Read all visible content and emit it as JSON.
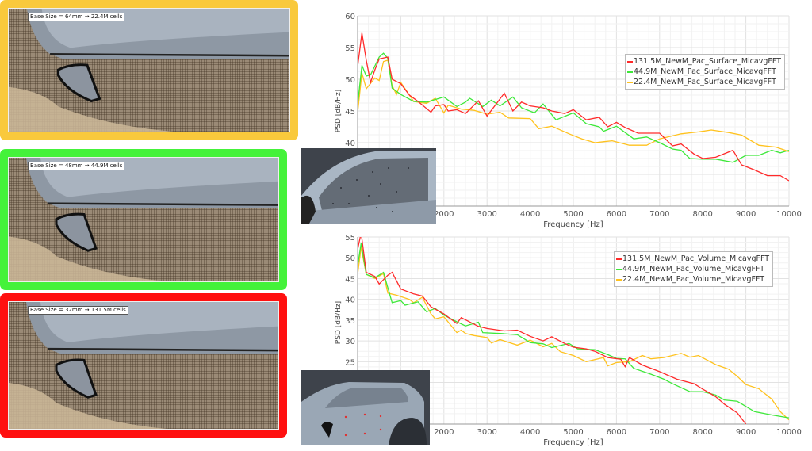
{
  "panels": [
    {
      "caption": "Base Size = 64mm → 22.4M cells",
      "border_color": "#f9c93c"
    },
    {
      "caption": "Base Size = 48mm → 44.9M cells",
      "border_color": "#44f23a"
    },
    {
      "caption": "Base Size = 32mm → 131.5M cells",
      "border_color": "#ff1010"
    }
  ],
  "chart_data": [
    {
      "type": "line",
      "xlabel": "Frequency [Hz]",
      "ylabel": "PSD [dB/Hz]",
      "xlim": [
        0,
        10000
      ],
      "ylim": [
        30,
        60
      ],
      "xticks": [
        "2000",
        "3000",
        "4000",
        "5000",
        "6000",
        "7000",
        "8000",
        "9000",
        "10000"
      ],
      "yticks": [
        "40",
        "45",
        "50",
        "55",
        "60"
      ],
      "grid": true,
      "legend_position": "top-right",
      "series": [
        {
          "name": "131.5M_NewM_Pac_Surface_MicavgFFT",
          "color": "#ff2a2a",
          "points": [
            [
              0,
              52
            ],
            [
              100,
              57.3
            ],
            [
              200,
              53
            ],
            [
              300,
              49.5
            ],
            [
              400,
              51.5
            ],
            [
              500,
              53.2
            ],
            [
              700,
              53.5
            ],
            [
              800,
              50
            ],
            [
              1000,
              49.3
            ],
            [
              1200,
              47.5
            ],
            [
              1400,
              46.5
            ],
            [
              1700,
              44.8
            ],
            [
              1800,
              45.8
            ],
            [
              2000,
              46
            ],
            [
              2100,
              45
            ],
            [
              2300,
              45.2
            ],
            [
              2500,
              44.6
            ],
            [
              2800,
              46.6
            ],
            [
              3000,
              44.2
            ],
            [
              3200,
              46
            ],
            [
              3400,
              47.8
            ],
            [
              3600,
              45
            ],
            [
              3800,
              46.4
            ],
            [
              4000,
              45.8
            ],
            [
              4300,
              45.5
            ],
            [
              4500,
              45
            ],
            [
              4800,
              44.6
            ],
            [
              5000,
              45.2
            ],
            [
              5300,
              43.6
            ],
            [
              5600,
              44
            ],
            [
              5800,
              42.5
            ],
            [
              6000,
              43.2
            ],
            [
              6200,
              42.4
            ],
            [
              6500,
              41.5
            ],
            [
              7000,
              41.5
            ],
            [
              7300,
              39.5
            ],
            [
              7500,
              39.8
            ],
            [
              7800,
              38.2
            ],
            [
              8000,
              37.5
            ],
            [
              8300,
              37.7
            ],
            [
              8700,
              38.8
            ],
            [
              8900,
              36.5
            ],
            [
              9200,
              35.7
            ],
            [
              9500,
              34.8
            ],
            [
              9800,
              34.8
            ],
            [
              10000,
              34
            ]
          ]
        },
        {
          "name": "44.9M_NewM_Pac_Surface_MicavgFFT",
          "color": "#3ee83a",
          "points": [
            [
              0,
              46
            ],
            [
              100,
              52.2
            ],
            [
              200,
              50.5
            ],
            [
              300,
              50.7
            ],
            [
              500,
              53.5
            ],
            [
              600,
              54.1
            ],
            [
              700,
              53.3
            ],
            [
              800,
              48.6
            ],
            [
              1000,
              47.6
            ],
            [
              1300,
              46.5
            ],
            [
              1600,
              46.4
            ],
            [
              2000,
              47.2
            ],
            [
              2300,
              45.7
            ],
            [
              2500,
              46.4
            ],
            [
              2600,
              47
            ],
            [
              2900,
              45.7
            ],
            [
              3100,
              46.7
            ],
            [
              3300,
              45.8
            ],
            [
              3600,
              47.2
            ],
            [
              3800,
              45.5
            ],
            [
              4100,
              44.7
            ],
            [
              4300,
              46.1
            ],
            [
              4600,
              43.6
            ],
            [
              5000,
              44.7
            ],
            [
              5300,
              43
            ],
            [
              5600,
              42.5
            ],
            [
              5700,
              41.8
            ],
            [
              6000,
              42.6
            ],
            [
              6200,
              41.6
            ],
            [
              6400,
              40.6
            ],
            [
              6700,
              40.9
            ],
            [
              7000,
              40
            ],
            [
              7300,
              39
            ],
            [
              7500,
              38.8
            ],
            [
              7700,
              37.5
            ],
            [
              8000,
              37.4
            ],
            [
              8300,
              37.4
            ],
            [
              8700,
              36.9
            ],
            [
              9000,
              38
            ],
            [
              9300,
              38
            ],
            [
              9600,
              38.8
            ],
            [
              9800,
              38.4
            ],
            [
              10000,
              38.8
            ]
          ]
        },
        {
          "name": "22.4M_NewM_Pac_Surface_MicavgFFT",
          "color": "#ffc21e",
          "points": [
            [
              0,
              44.7
            ],
            [
              100,
              51
            ],
            [
              200,
              48.5
            ],
            [
              400,
              50.2
            ],
            [
              500,
              49.8
            ],
            [
              600,
              52.8
            ],
            [
              700,
              53
            ],
            [
              800,
              49
            ],
            [
              900,
              47.6
            ],
            [
              1000,
              49.5
            ],
            [
              1300,
              46.5
            ],
            [
              1600,
              46.2
            ],
            [
              1800,
              47
            ],
            [
              2000,
              44.7
            ],
            [
              2100,
              45.9
            ],
            [
              2400,
              45.3
            ],
            [
              2700,
              45.1
            ],
            [
              3000,
              44.5
            ],
            [
              3300,
              44.8
            ],
            [
              3500,
              43.9
            ],
            [
              4000,
              43.8
            ],
            [
              4200,
              42.2
            ],
            [
              4500,
              42.6
            ],
            [
              4900,
              41.4
            ],
            [
              5200,
              40.6
            ],
            [
              5500,
              40
            ],
            [
              5900,
              40.3
            ],
            [
              6300,
              39.6
            ],
            [
              6700,
              39.6
            ],
            [
              7000,
              40.6
            ],
            [
              7500,
              41.4
            ],
            [
              7900,
              41.7
            ],
            [
              8200,
              42
            ],
            [
              8600,
              41.6
            ],
            [
              8900,
              41.2
            ],
            [
              9300,
              39.6
            ],
            [
              9700,
              39.3
            ],
            [
              10000,
              38.6
            ]
          ]
        }
      ]
    },
    {
      "type": "line",
      "xlabel": "Frequency [Hz]",
      "ylabel": "PSD [dB/Hz]",
      "xlim": [
        0,
        10000
      ],
      "ylim": [
        10,
        55
      ],
      "xticks": [
        "2000",
        "3000",
        "4000",
        "5000",
        "6000",
        "7000",
        "8000",
        "9000",
        "10000"
      ],
      "yticks": [
        "25",
        "30",
        "35",
        "40",
        "45",
        "50",
        "55"
      ],
      "grid": true,
      "legend_position": "top-right",
      "series": [
        {
          "name": "131.5M_NewM_Pac_Volume_MicavgFFT",
          "color": "#ff2a2a",
          "points": [
            [
              0,
              52
            ],
            [
              80,
              56
            ],
            [
              200,
              46.5
            ],
            [
              400,
              45.5
            ],
            [
              500,
              43.7
            ],
            [
              700,
              45.8
            ],
            [
              800,
              46.5
            ],
            [
              1000,
              42.5
            ],
            [
              1300,
              41.3
            ],
            [
              1500,
              40.8
            ],
            [
              1700,
              38.2
            ],
            [
              2000,
              36.5
            ],
            [
              2300,
              34.2
            ],
            [
              2400,
              35.6
            ],
            [
              2800,
              33.5
            ],
            [
              3000,
              33
            ],
            [
              3400,
              32.4
            ],
            [
              3700,
              32.6
            ],
            [
              4000,
              31.1
            ],
            [
              4300,
              30
            ],
            [
              4500,
              31
            ],
            [
              4800,
              29.4
            ],
            [
              5000,
              28.5
            ],
            [
              5300,
              28.1
            ],
            [
              5500,
              27.5
            ],
            [
              5800,
              26
            ],
            [
              6100,
              25.6
            ],
            [
              6200,
              23.8
            ],
            [
              6300,
              26
            ],
            [
              6600,
              24.2
            ],
            [
              7000,
              22.6
            ],
            [
              7400,
              20.8
            ],
            [
              7800,
              19.7
            ],
            [
              8000,
              18.4
            ],
            [
              8300,
              16.6
            ],
            [
              8500,
              14.8
            ],
            [
              8800,
              12.7
            ],
            [
              9000,
              10
            ]
          ]
        },
        {
          "name": "44.9M_NewM_Pac_Volume_MicavgFFT",
          "color": "#3ee83a",
          "points": [
            [
              0,
              48
            ],
            [
              80,
              53.5
            ],
            [
              200,
              46
            ],
            [
              400,
              45.2
            ],
            [
              600,
              46.5
            ],
            [
              800,
              39.2
            ],
            [
              1000,
              39.7
            ],
            [
              1100,
              38.6
            ],
            [
              1400,
              39.4
            ],
            [
              1600,
              37
            ],
            [
              1800,
              37.8
            ],
            [
              2000,
              36.2
            ],
            [
              2300,
              34.6
            ],
            [
              2500,
              33.6
            ],
            [
              2800,
              34.5
            ],
            [
              2900,
              32
            ],
            [
              3300,
              31.8
            ],
            [
              3700,
              31.5
            ],
            [
              4000,
              29.6
            ],
            [
              4300,
              29.3
            ],
            [
              4500,
              28.4
            ],
            [
              4900,
              29.4
            ],
            [
              5100,
              28.1
            ],
            [
              5500,
              27.9
            ],
            [
              5800,
              26.7
            ],
            [
              6000,
              25.8
            ],
            [
              6200,
              25.7
            ],
            [
              6400,
              23.4
            ],
            [
              6800,
              22
            ],
            [
              7100,
              20.8
            ],
            [
              7300,
              19.7
            ],
            [
              7700,
              17.8
            ],
            [
              8000,
              17.8
            ],
            [
              8300,
              17
            ],
            [
              8500,
              15.8
            ],
            [
              8800,
              15.5
            ],
            [
              9200,
              13
            ],
            [
              9600,
              12.2
            ],
            [
              10000,
              11.5
            ]
          ]
        },
        {
          "name": "22.4M_NewM_Pac_Volume_MicavgFFT",
          "color": "#ffc21e",
          "points": [
            [
              0,
              46
            ],
            [
              80,
              52.5
            ],
            [
              200,
              46
            ],
            [
              400,
              45
            ],
            [
              600,
              46.2
            ],
            [
              700,
              41.5
            ],
            [
              900,
              41
            ],
            [
              1200,
              40
            ],
            [
              1300,
              39.2
            ],
            [
              1500,
              40.5
            ],
            [
              1700,
              36.5
            ],
            [
              1800,
              35.3
            ],
            [
              2000,
              35.8
            ],
            [
              2300,
              32
            ],
            [
              2400,
              32.6
            ],
            [
              2500,
              31.8
            ],
            [
              2700,
              31.3
            ],
            [
              3000,
              30.8
            ],
            [
              3100,
              29.5
            ],
            [
              3300,
              30.3
            ],
            [
              3700,
              29
            ],
            [
              4000,
              30.2
            ],
            [
              4300,
              28.6
            ],
            [
              4500,
              29.4
            ],
            [
              4700,
              27.4
            ],
            [
              5000,
              26.5
            ],
            [
              5300,
              25
            ],
            [
              5700,
              26
            ],
            [
              5800,
              24
            ],
            [
              6000,
              24.8
            ],
            [
              6300,
              25
            ],
            [
              6600,
              26.5
            ],
            [
              6800,
              25.7
            ],
            [
              7100,
              26
            ],
            [
              7500,
              27
            ],
            [
              7700,
              26.1
            ],
            [
              7900,
              26.5
            ],
            [
              8100,
              25.4
            ],
            [
              8300,
              24.3
            ],
            [
              8600,
              23.2
            ],
            [
              8800,
              21.5
            ],
            [
              9000,
              19.5
            ],
            [
              9300,
              18.5
            ],
            [
              9600,
              16
            ],
            [
              9800,
              13
            ],
            [
              10000,
              11
            ]
          ]
        }
      ]
    }
  ]
}
